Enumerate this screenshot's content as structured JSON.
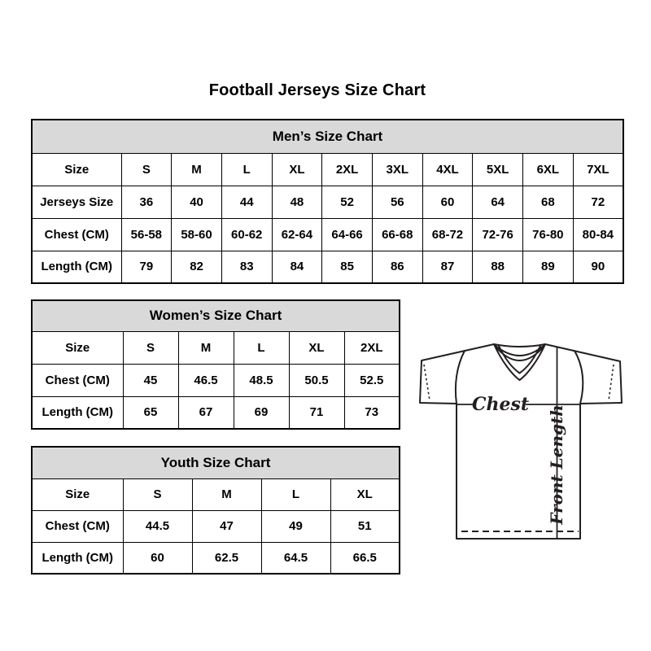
{
  "page_title": "Football Jerseys Size Chart",
  "tables": [
    {
      "title": "Men’s Size Chart",
      "rows": [
        {
          "label": "Size",
          "values": [
            "S",
            "M",
            "L",
            "XL",
            "2XL",
            "3XL",
            "4XL",
            "5XL",
            "6XL",
            "7XL"
          ]
        },
        {
          "label": "Jerseys Size",
          "values": [
            "36",
            "40",
            "44",
            "48",
            "52",
            "56",
            "60",
            "64",
            "68",
            "72"
          ]
        },
        {
          "label": "Chest (CM)",
          "values": [
            "56-58",
            "58-60",
            "60-62",
            "62-64",
            "64-66",
            "66-68",
            "68-72",
            "72-76",
            "76-80",
            "80-84"
          ]
        },
        {
          "label": "Length (CM)",
          "values": [
            "79",
            "82",
            "83",
            "84",
            "85",
            "86",
            "87",
            "88",
            "89",
            "90"
          ]
        }
      ]
    },
    {
      "title": "Women’s Size Chart",
      "rows": [
        {
          "label": "Size",
          "values": [
            "S",
            "M",
            "L",
            "XL",
            "2XL"
          ]
        },
        {
          "label": "Chest (CM)",
          "values": [
            "45",
            "46.5",
            "48.5",
            "50.5",
            "52.5"
          ]
        },
        {
          "label": "Length (CM)",
          "values": [
            "65",
            "67",
            "69",
            "71",
            "73"
          ]
        }
      ]
    },
    {
      "title": "Youth Size Chart",
      "rows": [
        {
          "label": "Size",
          "values": [
            "S",
            "M",
            "L",
            "XL"
          ]
        },
        {
          "label": "Chest (CM)",
          "values": [
            "44.5",
            "47",
            "49",
            "51"
          ]
        },
        {
          "label": "Length (CM)",
          "values": [
            "60",
            "62.5",
            "64.5",
            "66.5"
          ]
        }
      ]
    }
  ],
  "diagram": {
    "chest_label": "Chest",
    "front_length_label": "Front Length"
  },
  "colors": {
    "page_background": "#ffffff",
    "table_header_background": "#d9d9d9",
    "table_border": "#000000",
    "text": "#000000",
    "line_art": "#231f20"
  }
}
